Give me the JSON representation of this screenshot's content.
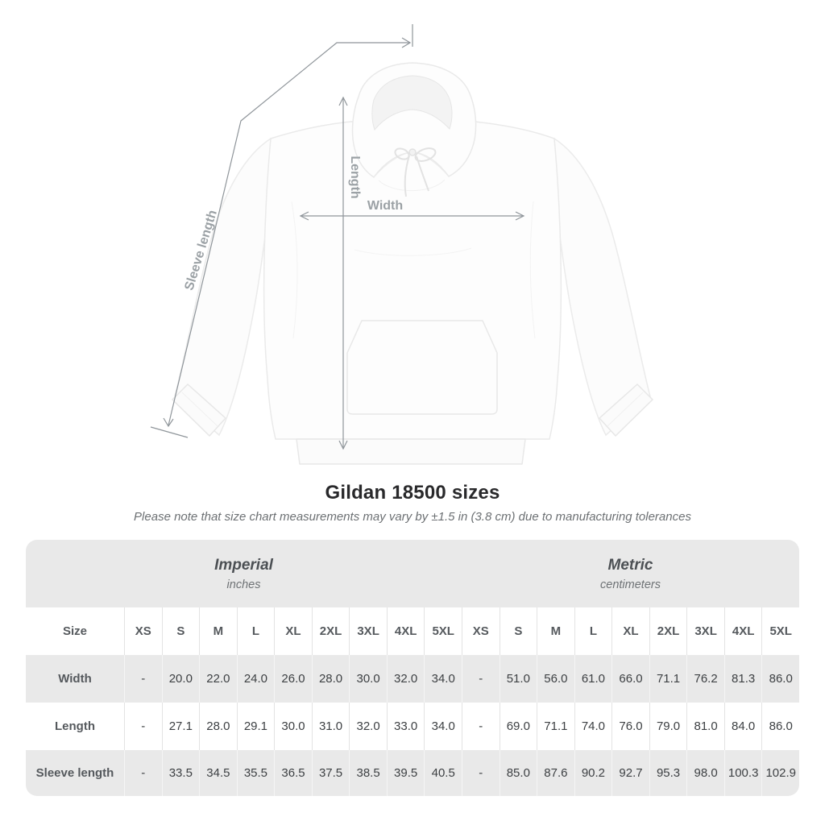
{
  "diagram": {
    "sleeve_length_label": "Sleeve length",
    "length_label": "Length",
    "width_label": "Width"
  },
  "title": "Gildan 18500 sizes",
  "subtitle": "Please note that size chart measurements may vary by ±1.5 in (3.8 cm) due to manufacturing tolerances",
  "table": {
    "size_header": "Size",
    "sizes": [
      "XS",
      "S",
      "M",
      "L",
      "XL",
      "2XL",
      "3XL",
      "4XL",
      "5XL"
    ],
    "groups": [
      {
        "label": "Imperial",
        "unit": "inches"
      },
      {
        "label": "Metric",
        "unit": "centimeters"
      }
    ],
    "rows": [
      {
        "label": "Width",
        "imperial": [
          "-",
          "20.0",
          "22.0",
          "24.0",
          "26.0",
          "28.0",
          "30.0",
          "32.0",
          "34.0"
        ],
        "metric": [
          "-",
          "51.0",
          "56.0",
          "61.0",
          "66.0",
          "71.1",
          "76.2",
          "81.3",
          "86.0"
        ]
      },
      {
        "label": "Length",
        "imperial": [
          "-",
          "27.1",
          "28.0",
          "29.1",
          "30.0",
          "31.0",
          "32.0",
          "33.0",
          "34.0"
        ],
        "metric": [
          "-",
          "69.0",
          "71.1",
          "74.0",
          "76.0",
          "79.0",
          "81.0",
          "84.0",
          "86.0"
        ]
      },
      {
        "label": "Sleeve length",
        "imperial": [
          "-",
          "33.5",
          "34.5",
          "35.5",
          "36.5",
          "37.5",
          "38.5",
          "39.5",
          "40.5"
        ],
        "metric": [
          "-",
          "85.0",
          "87.6",
          "90.2",
          "92.7",
          "95.3",
          "98.0",
          "100.3",
          "102.9"
        ]
      }
    ]
  },
  "colors": {
    "table_band": "#e9e9e9",
    "header_text": "#55595d",
    "value_text": "#3d4043",
    "annotation": "#9ba1a5",
    "line": "#8f959a"
  }
}
